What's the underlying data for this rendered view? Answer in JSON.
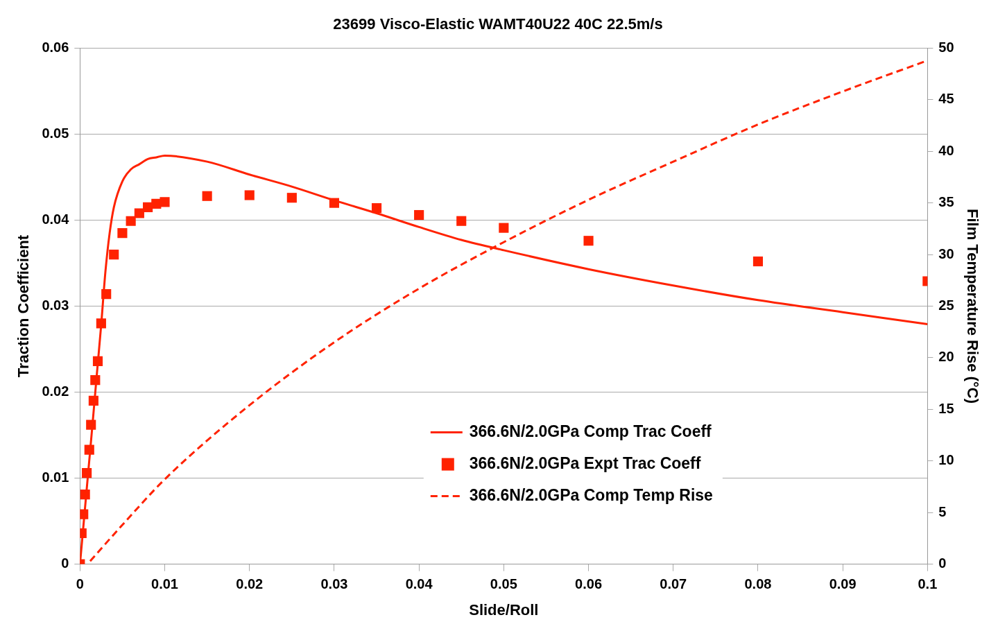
{
  "chart_data": {
    "type": "line",
    "title": "23699 Visco-Elastic WAMT40U22 40C 22.5m/s",
    "xlabel": "Slide/Roll",
    "ylabel": "Traction Coefficient",
    "y2label": "Film Temperature Rise (°C)",
    "xlim": [
      0,
      0.1
    ],
    "xticks": [
      0,
      0.01,
      0.02,
      0.03,
      0.04,
      0.05,
      0.06,
      0.07,
      0.08,
      0.09,
      0.1
    ],
    "ylim": [
      0,
      0.06
    ],
    "yticks": [
      0,
      0.01,
      0.02,
      0.03,
      0.04,
      0.05,
      0.06
    ],
    "y2lim": [
      0,
      50
    ],
    "y2ticks": [
      0,
      5,
      10,
      15,
      20,
      25,
      30,
      35,
      40,
      45,
      50
    ],
    "grid": "y",
    "legend": "bottom",
    "series": [
      {
        "name": "366.6N/2.0GPa Comp Trac Coeff",
        "color": "#ff2200",
        "line_style": "solid",
        "marker": "none",
        "x": [
          0,
          0.0005,
          0.001,
          0.0015,
          0.002,
          0.0025,
          0.003,
          0.0035,
          0.004,
          0.005,
          0.006,
          0.007,
          0.008,
          0.009,
          0.01,
          0.015,
          0.02,
          0.025,
          0.03,
          0.035,
          0.04,
          0.045,
          0.05,
          0.06,
          0.07,
          0.08,
          0.09,
          0.1
        ],
        "values": [
          0,
          0.0055,
          0.011,
          0.0165,
          0.0222,
          0.0278,
          0.034,
          0.0385,
          0.0415,
          0.0445,
          0.0459,
          0.0465,
          0.0471,
          0.0473,
          0.0475,
          0.0468,
          0.0453,
          0.0439,
          0.0423,
          0.0408,
          0.0392,
          0.0377,
          0.0365,
          0.0343,
          0.0324,
          0.0307,
          0.0293,
          0.0279
        ]
      },
      {
        "name": "366.6N/2.0GPa Expt Trac Coeff",
        "type": "scatter",
        "color": "#ff2200",
        "marker": "square",
        "x": [
          0,
          0.0002,
          0.0004,
          0.0006,
          0.0008,
          0.0011,
          0.0013,
          0.0016,
          0.0018,
          0.0021,
          0.0025,
          0.0031,
          0.004,
          0.005,
          0.006,
          0.007,
          0.008,
          0.009,
          0.01,
          0.015,
          0.02,
          0.025,
          0.03,
          0.035,
          0.04,
          0.045,
          0.05,
          0.06,
          0.08,
          0.1
        ],
        "values": [
          0,
          0.0036,
          0.0058,
          0.0081,
          0.0106,
          0.0133,
          0.0162,
          0.019,
          0.0214,
          0.0236,
          0.028,
          0.0314,
          0.036,
          0.0385,
          0.0399,
          0.0408,
          0.0415,
          0.0419,
          0.0421,
          0.0428,
          0.0429,
          0.0426,
          0.042,
          0.0414,
          0.0406,
          0.0399,
          0.0391,
          0.0376,
          0.0352,
          0.0329
        ]
      },
      {
        "name": "366.6N/2.0GPa Comp Temp Rise",
        "type": "line",
        "axis": "y2",
        "color": "#ff2200",
        "line_style": "dashed",
        "marker": "none",
        "x": [
          0.0012,
          0.005,
          0.0101,
          0.02,
          0.03,
          0.04,
          0.05,
          0.06,
          0.07,
          0.08,
          0.09,
          0.1
        ],
        "values": [
          0.3,
          3.8,
          8.3,
          15.4,
          21.5,
          26.7,
          31.2,
          35.3,
          39,
          42.6,
          45.8,
          48.8
        ]
      }
    ]
  }
}
